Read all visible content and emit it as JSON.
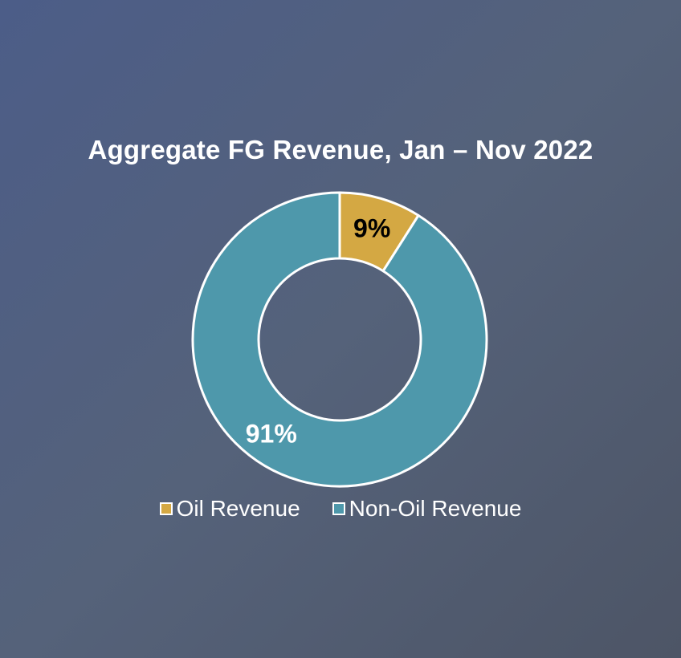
{
  "chart_data": {
    "type": "pie",
    "title": "Aggregate FG Revenue, Jan – Nov 2022",
    "donut": true,
    "slices": [
      {
        "label": "Oil Revenue",
        "value": 9,
        "display": "9%",
        "color": "#d4a843",
        "label_color": "#000000"
      },
      {
        "label": "Non-Oil Revenue",
        "value": 91,
        "display": "91%",
        "color": "#4e98ab",
        "label_color": "#ffffff"
      }
    ],
    "legend_position": "bottom"
  },
  "colors": {
    "slice_border": "#ffffff"
  }
}
